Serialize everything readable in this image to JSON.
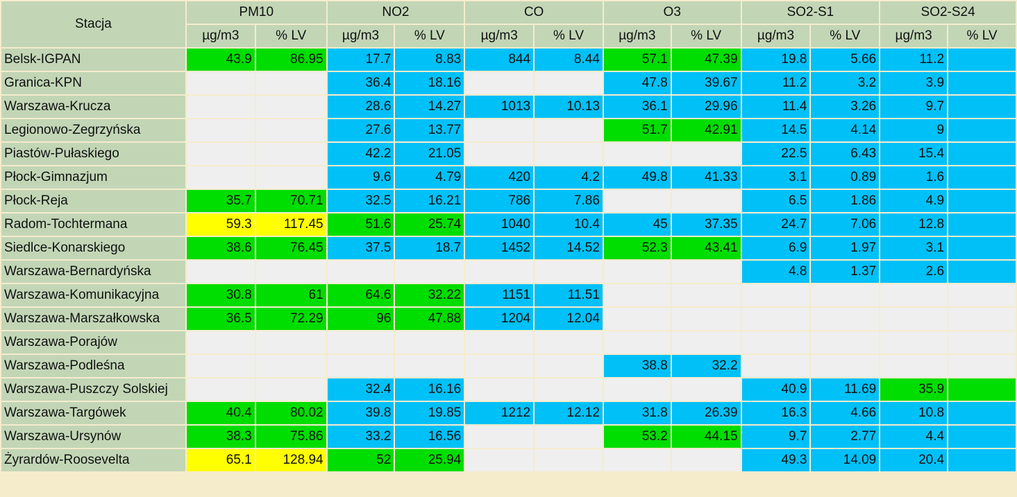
{
  "header": {
    "station_label": "Stacja",
    "pollutants": [
      "PM10",
      "NO2",
      "CO",
      "O3",
      "SO2-S1",
      "SO2-S24"
    ],
    "unit_label": "µg/m3",
    "lv_label": "% LV"
  },
  "colors": {
    "header_bg": "#c2d6b6",
    "blue": "#00c0f8",
    "green": "#00dd00",
    "yellow": "#ffff00",
    "empty": "#efefef"
  },
  "rows": [
    {
      "station": "Belsk-IGPAN",
      "cells": [
        [
          "43.9",
          "g"
        ],
        [
          "86.95",
          "g"
        ],
        [
          "17.7",
          "b"
        ],
        [
          "8.83",
          "b"
        ],
        [
          "844",
          "b"
        ],
        [
          "8.44",
          "b"
        ],
        [
          "57.1",
          "g"
        ],
        [
          "47.39",
          "g"
        ],
        [
          "19.8",
          "b"
        ],
        [
          "5.66",
          "b"
        ],
        [
          "11.2",
          "b"
        ],
        [
          "",
          "b"
        ]
      ]
    },
    {
      "station": "Granica-KPN",
      "cells": [
        [
          "",
          "e"
        ],
        [
          "",
          "e"
        ],
        [
          "36.4",
          "b"
        ],
        [
          "18.16",
          "b"
        ],
        [
          "",
          "e"
        ],
        [
          "",
          "e"
        ],
        [
          "47.8",
          "b"
        ],
        [
          "39.67",
          "b"
        ],
        [
          "11.2",
          "b"
        ],
        [
          "3.2",
          "b"
        ],
        [
          "3.9",
          "b"
        ],
        [
          "",
          "b"
        ]
      ]
    },
    {
      "station": "Warszawa-Krucza",
      "cells": [
        [
          "",
          "e"
        ],
        [
          "",
          "e"
        ],
        [
          "28.6",
          "b"
        ],
        [
          "14.27",
          "b"
        ],
        [
          "1013",
          "b"
        ],
        [
          "10.13",
          "b"
        ],
        [
          "36.1",
          "b"
        ],
        [
          "29.96",
          "b"
        ],
        [
          "11.4",
          "b"
        ],
        [
          "3.26",
          "b"
        ],
        [
          "9.7",
          "b"
        ],
        [
          "",
          "b"
        ]
      ]
    },
    {
      "station": "Legionowo-Zegrzyńska",
      "cells": [
        [
          "",
          "e"
        ],
        [
          "",
          "e"
        ],
        [
          "27.6",
          "b"
        ],
        [
          "13.77",
          "b"
        ],
        [
          "",
          "e"
        ],
        [
          "",
          "e"
        ],
        [
          "51.7",
          "g"
        ],
        [
          "42.91",
          "g"
        ],
        [
          "14.5",
          "b"
        ],
        [
          "4.14",
          "b"
        ],
        [
          "9",
          "b"
        ],
        [
          "",
          "b"
        ]
      ]
    },
    {
      "station": "Piastów-Pułaskiego",
      "cells": [
        [
          "",
          "e"
        ],
        [
          "",
          "e"
        ],
        [
          "42.2",
          "b"
        ],
        [
          "21.05",
          "b"
        ],
        [
          "",
          "e"
        ],
        [
          "",
          "e"
        ],
        [
          "",
          "e"
        ],
        [
          "",
          "e"
        ],
        [
          "22.5",
          "b"
        ],
        [
          "6.43",
          "b"
        ],
        [
          "15.4",
          "b"
        ],
        [
          "",
          "b"
        ]
      ]
    },
    {
      "station": "Płock-Gimnazjum",
      "cells": [
        [
          "",
          "e"
        ],
        [
          "",
          "e"
        ],
        [
          "9.6",
          "b"
        ],
        [
          "4.79",
          "b"
        ],
        [
          "420",
          "b"
        ],
        [
          "4.2",
          "b"
        ],
        [
          "49.8",
          "b"
        ],
        [
          "41.33",
          "b"
        ],
        [
          "3.1",
          "b"
        ],
        [
          "0.89",
          "b"
        ],
        [
          "1.6",
          "b"
        ],
        [
          "",
          "b"
        ]
      ]
    },
    {
      "station": "Płock-Reja",
      "cells": [
        [
          "35.7",
          "g"
        ],
        [
          "70.71",
          "g"
        ],
        [
          "32.5",
          "b"
        ],
        [
          "16.21",
          "b"
        ],
        [
          "786",
          "b"
        ],
        [
          "7.86",
          "b"
        ],
        [
          "",
          "e"
        ],
        [
          "",
          "e"
        ],
        [
          "6.5",
          "b"
        ],
        [
          "1.86",
          "b"
        ],
        [
          "4.9",
          "b"
        ],
        [
          "",
          "b"
        ]
      ]
    },
    {
      "station": "Radom-Tochtermana",
      "cells": [
        [
          "59.3",
          "y"
        ],
        [
          "117.45",
          "y"
        ],
        [
          "51.6",
          "g"
        ],
        [
          "25.74",
          "g"
        ],
        [
          "1040",
          "b"
        ],
        [
          "10.4",
          "b"
        ],
        [
          "45",
          "b"
        ],
        [
          "37.35",
          "b"
        ],
        [
          "24.7",
          "b"
        ],
        [
          "7.06",
          "b"
        ],
        [
          "12.8",
          "b"
        ],
        [
          "",
          "b"
        ]
      ]
    },
    {
      "station": "Siedlce-Konarskiego",
      "cells": [
        [
          "38.6",
          "g"
        ],
        [
          "76.45",
          "g"
        ],
        [
          "37.5",
          "b"
        ],
        [
          "18.7",
          "b"
        ],
        [
          "1452",
          "b"
        ],
        [
          "14.52",
          "b"
        ],
        [
          "52.3",
          "g"
        ],
        [
          "43.41",
          "g"
        ],
        [
          "6.9",
          "b"
        ],
        [
          "1.97",
          "b"
        ],
        [
          "3.1",
          "b"
        ],
        [
          "",
          "b"
        ]
      ]
    },
    {
      "station": "Warszawa-Bernardyńska",
      "cells": [
        [
          "",
          "e"
        ],
        [
          "",
          "e"
        ],
        [
          "",
          "e"
        ],
        [
          "",
          "e"
        ],
        [
          "",
          "e"
        ],
        [
          "",
          "e"
        ],
        [
          "",
          "e"
        ],
        [
          "",
          "e"
        ],
        [
          "4.8",
          "b"
        ],
        [
          "1.37",
          "b"
        ],
        [
          "2.6",
          "b"
        ],
        [
          "",
          "b"
        ]
      ]
    },
    {
      "station": "Warszawa-Komunikacyjna",
      "cells": [
        [
          "30.8",
          "g"
        ],
        [
          "61",
          "g"
        ],
        [
          "64.6",
          "g"
        ],
        [
          "32.22",
          "g"
        ],
        [
          "1151",
          "b"
        ],
        [
          "11.51",
          "b"
        ],
        [
          "",
          "e"
        ],
        [
          "",
          "e"
        ],
        [
          "",
          "e"
        ],
        [
          "",
          "e"
        ],
        [
          "",
          "e"
        ],
        [
          "",
          "e"
        ]
      ]
    },
    {
      "station": "Warszawa-Marszałkowska",
      "cells": [
        [
          "36.5",
          "g"
        ],
        [
          "72.29",
          "g"
        ],
        [
          "96",
          "g"
        ],
        [
          "47.88",
          "g"
        ],
        [
          "1204",
          "b"
        ],
        [
          "12.04",
          "b"
        ],
        [
          "",
          "e"
        ],
        [
          "",
          "e"
        ],
        [
          "",
          "e"
        ],
        [
          "",
          "e"
        ],
        [
          "",
          "e"
        ],
        [
          "",
          "e"
        ]
      ]
    },
    {
      "station": "Warszawa-Porajów",
      "cells": [
        [
          "",
          "e"
        ],
        [
          "",
          "e"
        ],
        [
          "",
          "e"
        ],
        [
          "",
          "e"
        ],
        [
          "",
          "e"
        ],
        [
          "",
          "e"
        ],
        [
          "",
          "e"
        ],
        [
          "",
          "e"
        ],
        [
          "",
          "e"
        ],
        [
          "",
          "e"
        ],
        [
          "",
          "e"
        ],
        [
          "",
          "e"
        ]
      ]
    },
    {
      "station": "Warszawa-Podleśna",
      "cells": [
        [
          "",
          "e"
        ],
        [
          "",
          "e"
        ],
        [
          "",
          "e"
        ],
        [
          "",
          "e"
        ],
        [
          "",
          "e"
        ],
        [
          "",
          "e"
        ],
        [
          "38.8",
          "b"
        ],
        [
          "32.2",
          "b"
        ],
        [
          "",
          "e"
        ],
        [
          "",
          "e"
        ],
        [
          "",
          "e"
        ],
        [
          "",
          "e"
        ]
      ]
    },
    {
      "station": "Warszawa-Puszczy Solskiej",
      "cells": [
        [
          "",
          "e"
        ],
        [
          "",
          "e"
        ],
        [
          "32.4",
          "b"
        ],
        [
          "16.16",
          "b"
        ],
        [
          "",
          "e"
        ],
        [
          "",
          "e"
        ],
        [
          "",
          "e"
        ],
        [
          "",
          "e"
        ],
        [
          "40.9",
          "b"
        ],
        [
          "11.69",
          "b"
        ],
        [
          "35.9",
          "g"
        ],
        [
          "",
          "g"
        ]
      ]
    },
    {
      "station": "Warszawa-Targówek",
      "cells": [
        [
          "40.4",
          "g"
        ],
        [
          "80.02",
          "g"
        ],
        [
          "39.8",
          "b"
        ],
        [
          "19.85",
          "b"
        ],
        [
          "1212",
          "b"
        ],
        [
          "12.12",
          "b"
        ],
        [
          "31.8",
          "b"
        ],
        [
          "26.39",
          "b"
        ],
        [
          "16.3",
          "b"
        ],
        [
          "4.66",
          "b"
        ],
        [
          "10.8",
          "b"
        ],
        [
          "",
          "b"
        ]
      ]
    },
    {
      "station": "Warszawa-Ursynów",
      "cells": [
        [
          "38.3",
          "g"
        ],
        [
          "75.86",
          "g"
        ],
        [
          "33.2",
          "b"
        ],
        [
          "16.56",
          "b"
        ],
        [
          "",
          "e"
        ],
        [
          "",
          "e"
        ],
        [
          "53.2",
          "g"
        ],
        [
          "44.15",
          "g"
        ],
        [
          "9.7",
          "b"
        ],
        [
          "2.77",
          "b"
        ],
        [
          "4.4",
          "b"
        ],
        [
          "",
          "b"
        ]
      ]
    },
    {
      "station": "Żyrardów-Roosevelta",
      "cells": [
        [
          "65.1",
          "y"
        ],
        [
          "128.94",
          "y"
        ],
        [
          "52",
          "g"
        ],
        [
          "25.94",
          "g"
        ],
        [
          "",
          "e"
        ],
        [
          "",
          "e"
        ],
        [
          "",
          "e"
        ],
        [
          "",
          "e"
        ],
        [
          "49.3",
          "b"
        ],
        [
          "14.09",
          "b"
        ],
        [
          "20.4",
          "b"
        ],
        [
          "",
          "b"
        ]
      ]
    }
  ]
}
